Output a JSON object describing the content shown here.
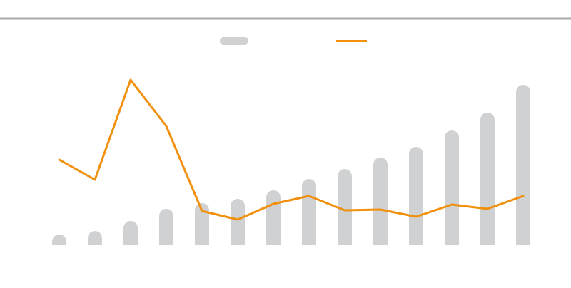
{
  "chart_data": {
    "type": "bar",
    "grid": false,
    "legend_position": "top-center",
    "categories": [
      "",
      "",
      "",
      "",
      "",
      "",
      "",
      "",
      "",
      "",
      "",
      "",
      "",
      ""
    ],
    "series": [
      {
        "kind": "bar",
        "values": [
          15,
          20,
          34,
          51,
          59,
          65,
          77,
          93,
          107,
          123,
          138,
          161,
          186,
          225
        ],
        "ylim": [
          0,
          240
        ]
      },
      {
        "kind": "line",
        "values": [
          120,
          92,
          232,
          167,
          48,
          36,
          58,
          69,
          49,
          50,
          40,
          57,
          51,
          69
        ],
        "ylim": [
          0,
          240
        ]
      }
    ],
    "colors": {
      "bar": "#d0d1d3",
      "line": "#f0900d",
      "top_rule": "#a9a9a9"
    }
  }
}
